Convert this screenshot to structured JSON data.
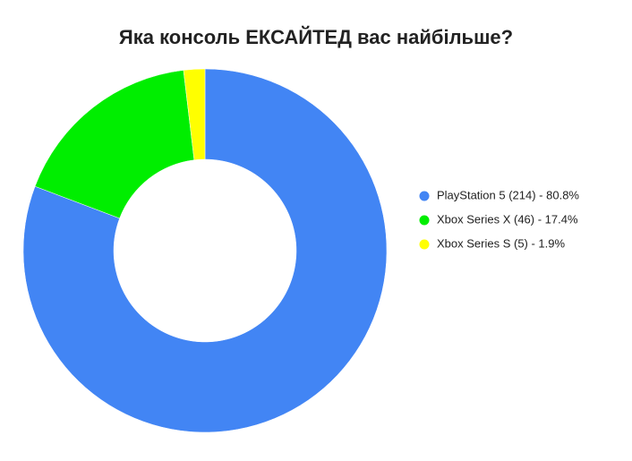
{
  "chart_data": {
    "type": "donut",
    "title": "Яка консоль ЕКСАЙТЕД вас найбільше?",
    "categories": [
      "PlayStation 5 (214) - 80.8%",
      "Xbox Series X (46) - 17.4%",
      "Xbox Series S (5) - 1.9%"
    ],
    "values": [
      214,
      46,
      5
    ],
    "colors": [
      "#4285f4",
      "#00ee00",
      "#ffff00"
    ],
    "legend": "right"
  }
}
